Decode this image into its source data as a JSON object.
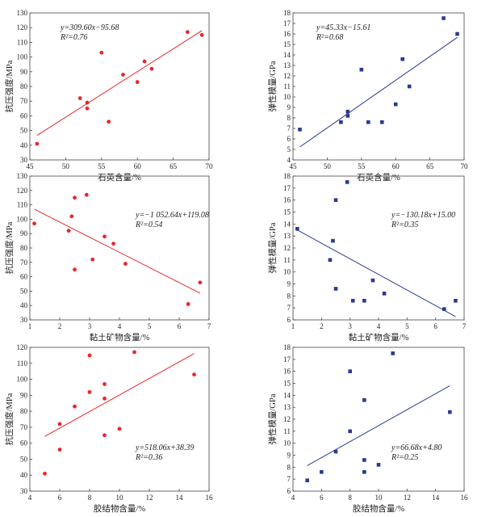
{
  "chart_data": [
    {
      "type": "scatter",
      "xlabel": "石英含量/%",
      "ylabel": "抗压强度/MPa",
      "xlim": [
        45,
        70
      ],
      "ylim": [
        30,
        130
      ],
      "xticks": [
        45,
        50,
        55,
        60,
        65,
        70
      ],
      "yticks": [
        30,
        40,
        50,
        60,
        70,
        80,
        90,
        100,
        110,
        120,
        130
      ],
      "color": "#e8262b",
      "marker": "circle",
      "points": [
        [
          46,
          41
        ],
        [
          52,
          72
        ],
        [
          53,
          69
        ],
        [
          53,
          65
        ],
        [
          55,
          103
        ],
        [
          56,
          56
        ],
        [
          58,
          88
        ],
        [
          60,
          83
        ],
        [
          61,
          97
        ],
        [
          62,
          92
        ],
        [
          67,
          117
        ],
        [
          69,
          115
        ]
      ],
      "fit": {
        "slope": 3.096,
        "intercept": -95.68
      },
      "equation": "y=309.60x−95.68",
      "r2": "R²=0.76"
    },
    {
      "type": "scatter",
      "xlabel": "石英含量/%",
      "ylabel": "弹性模量/GPa",
      "xlim": [
        45,
        70
      ],
      "ylim": [
        4,
        18
      ],
      "xticks": [
        45,
        50,
        55,
        60,
        65,
        70
      ],
      "yticks": [
        4,
        5,
        6,
        7,
        8,
        9,
        10,
        11,
        12,
        13,
        14,
        15,
        16,
        17,
        18
      ],
      "color": "#2a3a8f",
      "marker": "square",
      "points": [
        [
          46,
          6.9
        ],
        [
          52,
          7.6
        ],
        [
          53,
          8.6
        ],
        [
          53,
          8.2
        ],
        [
          55,
          12.6
        ],
        [
          56,
          7.6
        ],
        [
          58,
          7.6
        ],
        [
          60,
          9.3
        ],
        [
          61,
          13.6
        ],
        [
          62,
          11.0
        ],
        [
          67,
          17.5
        ],
        [
          69,
          16.0
        ]
      ],
      "fit": {
        "slope": 0.4533,
        "intercept": -15.61
      },
      "equation": "y=45.33x−15.61",
      "r2": "R²=0.68"
    },
    {
      "type": "scatter",
      "xlabel": "黏土矿物含量/%",
      "ylabel": "抗压强度/MPa",
      "xlim": [
        1,
        7
      ],
      "ylim": [
        30,
        130
      ],
      "xticks": [
        1,
        2,
        3,
        4,
        5,
        6,
        7
      ],
      "yticks": [
        30,
        40,
        50,
        60,
        70,
        80,
        90,
        100,
        110,
        120,
        130
      ],
      "color": "#e8262b",
      "marker": "circle",
      "points": [
        [
          1.15,
          97
        ],
        [
          2.3,
          92
        ],
        [
          2.4,
          102
        ],
        [
          2.5,
          115
        ],
        [
          2.5,
          65
        ],
        [
          2.9,
          117
        ],
        [
          3.1,
          72
        ],
        [
          3.5,
          88
        ],
        [
          3.8,
          83
        ],
        [
          4.2,
          69
        ],
        [
          6.3,
          41
        ],
        [
          6.7,
          56
        ]
      ],
      "fit": {
        "slope": -10.5264,
        "intercept": 119.08
      },
      "equation": "y=−1 052.64x+119.08",
      "r2": "R²=0.54"
    },
    {
      "type": "scatter",
      "xlabel": "黏土矿物含量/%",
      "ylabel": "弹性模量/GPa",
      "xlim": [
        1,
        7
      ],
      "ylim": [
        6,
        18
      ],
      "xticks": [
        1,
        2,
        3,
        4,
        5,
        6,
        7
      ],
      "yticks": [
        6,
        7,
        8,
        9,
        10,
        11,
        12,
        13,
        14,
        15,
        16,
        17,
        18
      ],
      "color": "#2a3a8f",
      "marker": "square",
      "points": [
        [
          1.15,
          13.6
        ],
        [
          2.3,
          11.0
        ],
        [
          2.4,
          12.6
        ],
        [
          2.5,
          16.0
        ],
        [
          2.5,
          8.6
        ],
        [
          2.9,
          17.5
        ],
        [
          3.1,
          7.6
        ],
        [
          3.5,
          7.6
        ],
        [
          3.8,
          9.3
        ],
        [
          4.2,
          8.2
        ],
        [
          6.3,
          6.9
        ],
        [
          6.7,
          7.6
        ]
      ],
      "fit": {
        "slope": -1.3018,
        "intercept": 15.0
      },
      "equation": "y=−130.18x+15.00",
      "r2": "R²=0.35"
    },
    {
      "type": "scatter",
      "xlabel": "胶结物含量/%",
      "ylabel": "抗压强度/MPa",
      "xlim": [
        4,
        16
      ],
      "ylim": [
        30,
        120
      ],
      "xticks": [
        4,
        6,
        8,
        10,
        12,
        14,
        16
      ],
      "yticks": [
        30,
        40,
        50,
        60,
        70,
        80,
        90,
        100,
        110,
        120
      ],
      "color": "#e8262b",
      "marker": "circle",
      "points": [
        [
          5,
          41
        ],
        [
          6,
          56
        ],
        [
          6,
          72
        ],
        [
          7,
          83
        ],
        [
          8,
          92
        ],
        [
          8,
          115
        ],
        [
          9,
          97
        ],
        [
          9,
          88
        ],
        [
          9,
          65
        ],
        [
          10,
          69
        ],
        [
          11,
          117
        ],
        [
          15,
          103
        ]
      ],
      "fit": {
        "slope": 5.1806,
        "intercept": 38.39
      },
      "equation": "y=518.06x+38.39",
      "r2": "R²=0.36"
    },
    {
      "type": "scatter",
      "xlabel": "胶结物含量/%",
      "ylabel": "弹性模量/GPa",
      "xlim": [
        4,
        16
      ],
      "ylim": [
        6,
        18
      ],
      "xticks": [
        4,
        6,
        8,
        10,
        12,
        14,
        16
      ],
      "yticks": [
        6,
        7,
        8,
        9,
        10,
        11,
        12,
        13,
        14,
        15,
        16,
        17,
        18
      ],
      "color": "#2a3a8f",
      "marker": "square",
      "points": [
        [
          5,
          6.9
        ],
        [
          6,
          7.6
        ],
        [
          7,
          9.3
        ],
        [
          8,
          16.0
        ],
        [
          8,
          11.0
        ],
        [
          9,
          13.6
        ],
        [
          9,
          8.6
        ],
        [
          9,
          7.6
        ],
        [
          10,
          8.2
        ],
        [
          11,
          17.5
        ],
        [
          15,
          12.6
        ]
      ],
      "fit": {
        "slope": 0.6668,
        "intercept": 4.8
      },
      "equation": "y=66.68x+4.80",
      "r2": "R²=0.25"
    }
  ]
}
